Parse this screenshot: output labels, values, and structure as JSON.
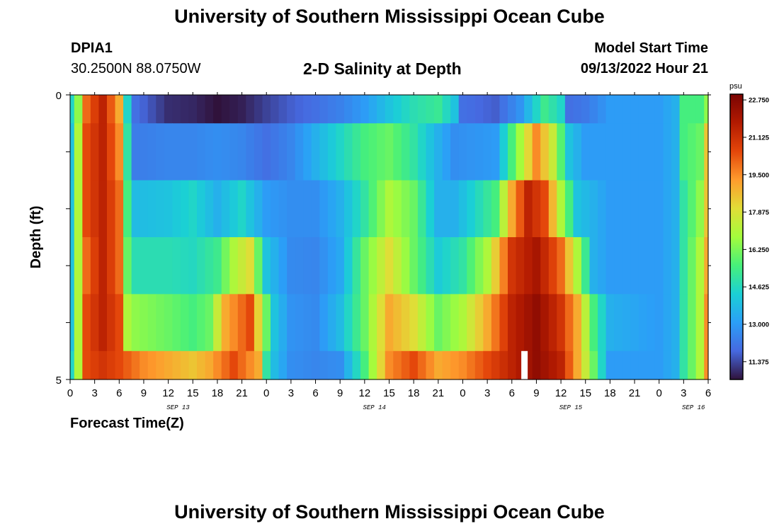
{
  "header": {
    "title": "University of Southern Mississippi Ocean Cube",
    "station": "DPIA1",
    "coordinates": "30.2500N  88.0750W",
    "subtitle": "2-D Salinity at Depth",
    "model_start_label": "Model Start Time",
    "model_start_value": "09/13/2022 Hour 21"
  },
  "footer": {
    "title": "University of Southern Mississippi Ocean Cube"
  },
  "chart_data": {
    "type": "heatmap",
    "title": "2-D Salinity at Depth",
    "xlabel": "Forecast Time(Z)",
    "ylabel": "Depth (ft)",
    "y_tick_labels": [
      "0",
      "5"
    ],
    "ylim": [
      0,
      5
    ],
    "x_tick_labels": [
      "0",
      "3",
      "6",
      "9",
      "12",
      "15",
      "18",
      "21",
      "0",
      "3",
      "6",
      "9",
      "12",
      "15",
      "18",
      "21",
      "0",
      "3",
      "6",
      "9",
      "12",
      "15",
      "18",
      "21",
      "0",
      "3",
      "6"
    ],
    "date_labels": [
      {
        "label": "SEP 13",
        "tick_index": 4.4
      },
      {
        "label": "SEP 14",
        "tick_index": 12.4
      },
      {
        "label": "SEP 15",
        "tick_index": 20.4
      },
      {
        "label": "SEP 16",
        "tick_index": 25.4
      }
    ],
    "colorbar": {
      "unit": "psu",
      "min": 10.6,
      "max": 23.0,
      "tick_values": [
        "22.750",
        "21.125",
        "19.500",
        "17.875",
        "16.250",
        "14.625",
        "13.000",
        "11.375"
      ]
    },
    "hours": [
      0,
      78
    ],
    "depth_layers": [
      "0-0.5",
      "0.5-1.5",
      "1.5-2.5",
      "2.5-3.5",
      "3.5-4.5",
      "4.5-5"
    ],
    "salinity_keyframes": [
      [
        [
          0,
          14.5
        ],
        [
          1,
          16.5
        ],
        [
          2,
          20
        ],
        [
          4,
          21.5
        ],
        [
          6,
          19
        ],
        [
          7,
          14.5
        ],
        [
          8,
          12
        ],
        [
          12,
          11
        ],
        [
          15,
          10.9
        ],
        [
          18,
          10.6
        ],
        [
          21,
          10.8
        ],
        [
          24,
          11.3
        ],
        [
          27,
          11.7
        ],
        [
          30,
          12
        ],
        [
          33,
          12.4
        ],
        [
          36,
          13
        ],
        [
          39,
          14
        ],
        [
          42,
          14.8
        ],
        [
          45,
          15.2
        ],
        [
          47,
          14
        ],
        [
          48,
          12
        ],
        [
          52,
          11.7
        ],
        [
          55,
          12.8
        ],
        [
          57,
          14.5
        ],
        [
          58,
          15.3
        ],
        [
          60,
          14.5
        ],
        [
          61,
          12
        ],
        [
          63,
          12.2
        ],
        [
          66,
          13
        ],
        [
          72,
          13
        ],
        [
          74,
          13.5
        ],
        [
          75,
          15.5
        ],
        [
          77,
          15.5
        ],
        [
          78,
          16.5
        ]
      ],
      [
        [
          0,
          14
        ],
        [
          1,
          17
        ],
        [
          2,
          20.5
        ],
        [
          4,
          21.5
        ],
        [
          6,
          19.5
        ],
        [
          7,
          15
        ],
        [
          8,
          12.3
        ],
        [
          12,
          12.5
        ],
        [
          15,
          12.5
        ],
        [
          18,
          12.7
        ],
        [
          21,
          12.5
        ],
        [
          24,
          12
        ],
        [
          27,
          12.5
        ],
        [
          30,
          13.5
        ],
        [
          33,
          14.5
        ],
        [
          36,
          15.5
        ],
        [
          39,
          16
        ],
        [
          42,
          15
        ],
        [
          45,
          13.5
        ],
        [
          47,
          12.7
        ],
        [
          52,
          13
        ],
        [
          55,
          16.8
        ],
        [
          57,
          19.5
        ],
        [
          59,
          17.5
        ],
        [
          61,
          14
        ],
        [
          63,
          13
        ],
        [
          66,
          13
        ],
        [
          72,
          13
        ],
        [
          74,
          13.5
        ],
        [
          75,
          15.5
        ],
        [
          77,
          16
        ],
        [
          78,
          18.5
        ]
      ],
      [
        [
          0,
          14
        ],
        [
          1,
          17
        ],
        [
          2,
          20.5
        ],
        [
          4,
          21.5
        ],
        [
          6,
          20
        ],
        [
          7,
          15.5
        ],
        [
          8,
          13.8
        ],
        [
          12,
          14
        ],
        [
          15,
          14.5
        ],
        [
          18,
          13.5
        ],
        [
          21,
          14.5
        ],
        [
          24,
          13
        ],
        [
          27,
          12.7
        ],
        [
          30,
          12.7
        ],
        [
          33,
          13.5
        ],
        [
          36,
          15
        ],
        [
          39,
          17
        ],
        [
          42,
          16
        ],
        [
          45,
          13.5
        ],
        [
          47,
          13.5
        ],
        [
          52,
          15.5
        ],
        [
          54,
          19
        ],
        [
          56,
          21.5
        ],
        [
          58,
          20.5
        ],
        [
          60,
          17
        ],
        [
          62,
          14
        ],
        [
          66,
          13
        ],
        [
          72,
          13
        ],
        [
          74,
          13.5
        ],
        [
          75,
          15
        ],
        [
          77,
          16.5
        ],
        [
          78,
          18.5
        ]
      ],
      [
        [
          0,
          14
        ],
        [
          1,
          17
        ],
        [
          2,
          20
        ],
        [
          4,
          21.5
        ],
        [
          6,
          20
        ],
        [
          7,
          16
        ],
        [
          8,
          14.8
        ],
        [
          12,
          14.8
        ],
        [
          15,
          14.6
        ],
        [
          18,
          15.3
        ],
        [
          20,
          17
        ],
        [
          22,
          18
        ],
        [
          24,
          14
        ],
        [
          27,
          12.6
        ],
        [
          30,
          12.5
        ],
        [
          33,
          13.3
        ],
        [
          36,
          16
        ],
        [
          39,
          18
        ],
        [
          42,
          16
        ],
        [
          45,
          14.2
        ],
        [
          48,
          15
        ],
        [
          51,
          17
        ],
        [
          54,
          21
        ],
        [
          57,
          22
        ],
        [
          60,
          20
        ],
        [
          62,
          17
        ],
        [
          64,
          13.5
        ],
        [
          66,
          13
        ],
        [
          72,
          13
        ],
        [
          74,
          13.5
        ],
        [
          75,
          15
        ],
        [
          77,
          17
        ],
        [
          78,
          19
        ]
      ],
      [
        [
          0,
          14
        ],
        [
          1,
          17
        ],
        [
          2,
          20.5
        ],
        [
          4,
          21.5
        ],
        [
          6,
          20.5
        ],
        [
          7,
          17
        ],
        [
          8,
          16.5
        ],
        [
          12,
          16
        ],
        [
          15,
          15.5
        ],
        [
          17,
          16
        ],
        [
          19,
          19
        ],
        [
          22,
          20.5
        ],
        [
          24,
          16
        ],
        [
          25,
          14
        ],
        [
          27,
          12.8
        ],
        [
          30,
          12.6
        ],
        [
          33,
          13.8
        ],
        [
          36,
          16
        ],
        [
          39,
          19
        ],
        [
          42,
          18
        ],
        [
          45,
          16
        ],
        [
          48,
          17
        ],
        [
          51,
          19
        ],
        [
          54,
          21.5
        ],
        [
          57,
          22.5
        ],
        [
          60,
          21
        ],
        [
          62,
          19
        ],
        [
          64,
          15.5
        ],
        [
          66,
          13.5
        ],
        [
          72,
          13
        ],
        [
          74,
          13.5
        ],
        [
          75,
          15
        ],
        [
          77,
          17
        ],
        [
          78,
          19.5
        ]
      ],
      [
        [
          0,
          14.5
        ],
        [
          1,
          17
        ],
        [
          2,
          20.5
        ],
        [
          4,
          21
        ],
        [
          6,
          20.5
        ],
        [
          9,
          19.5
        ],
        [
          12,
          19
        ],
        [
          15,
          18.5
        ],
        [
          17,
          19
        ],
        [
          20,
          20.5
        ],
        [
          23,
          19
        ],
        [
          24,
          15
        ],
        [
          25,
          13.8
        ],
        [
          27,
          12.7
        ],
        [
          30,
          12.5
        ],
        [
          33,
          12.7
        ],
        [
          36,
          15.5
        ],
        [
          39,
          19.5
        ],
        [
          42,
          20.5
        ],
        [
          45,
          19
        ],
        [
          48,
          19.5
        ],
        [
          51,
          20.5
        ],
        [
          54,
          21.5
        ],
        [
          57,
          22.5
        ],
        [
          60,
          21.5
        ],
        [
          62,
          19
        ],
        [
          64,
          16
        ],
        [
          66,
          13
        ],
        [
          72,
          13
        ],
        [
          74,
          13.5
        ],
        [
          75,
          15
        ],
        [
          77,
          17
        ],
        [
          78,
          19.5
        ]
      ]
    ],
    "missing_data": [
      {
        "hour": 55.5,
        "depth_layer": 5
      }
    ]
  }
}
